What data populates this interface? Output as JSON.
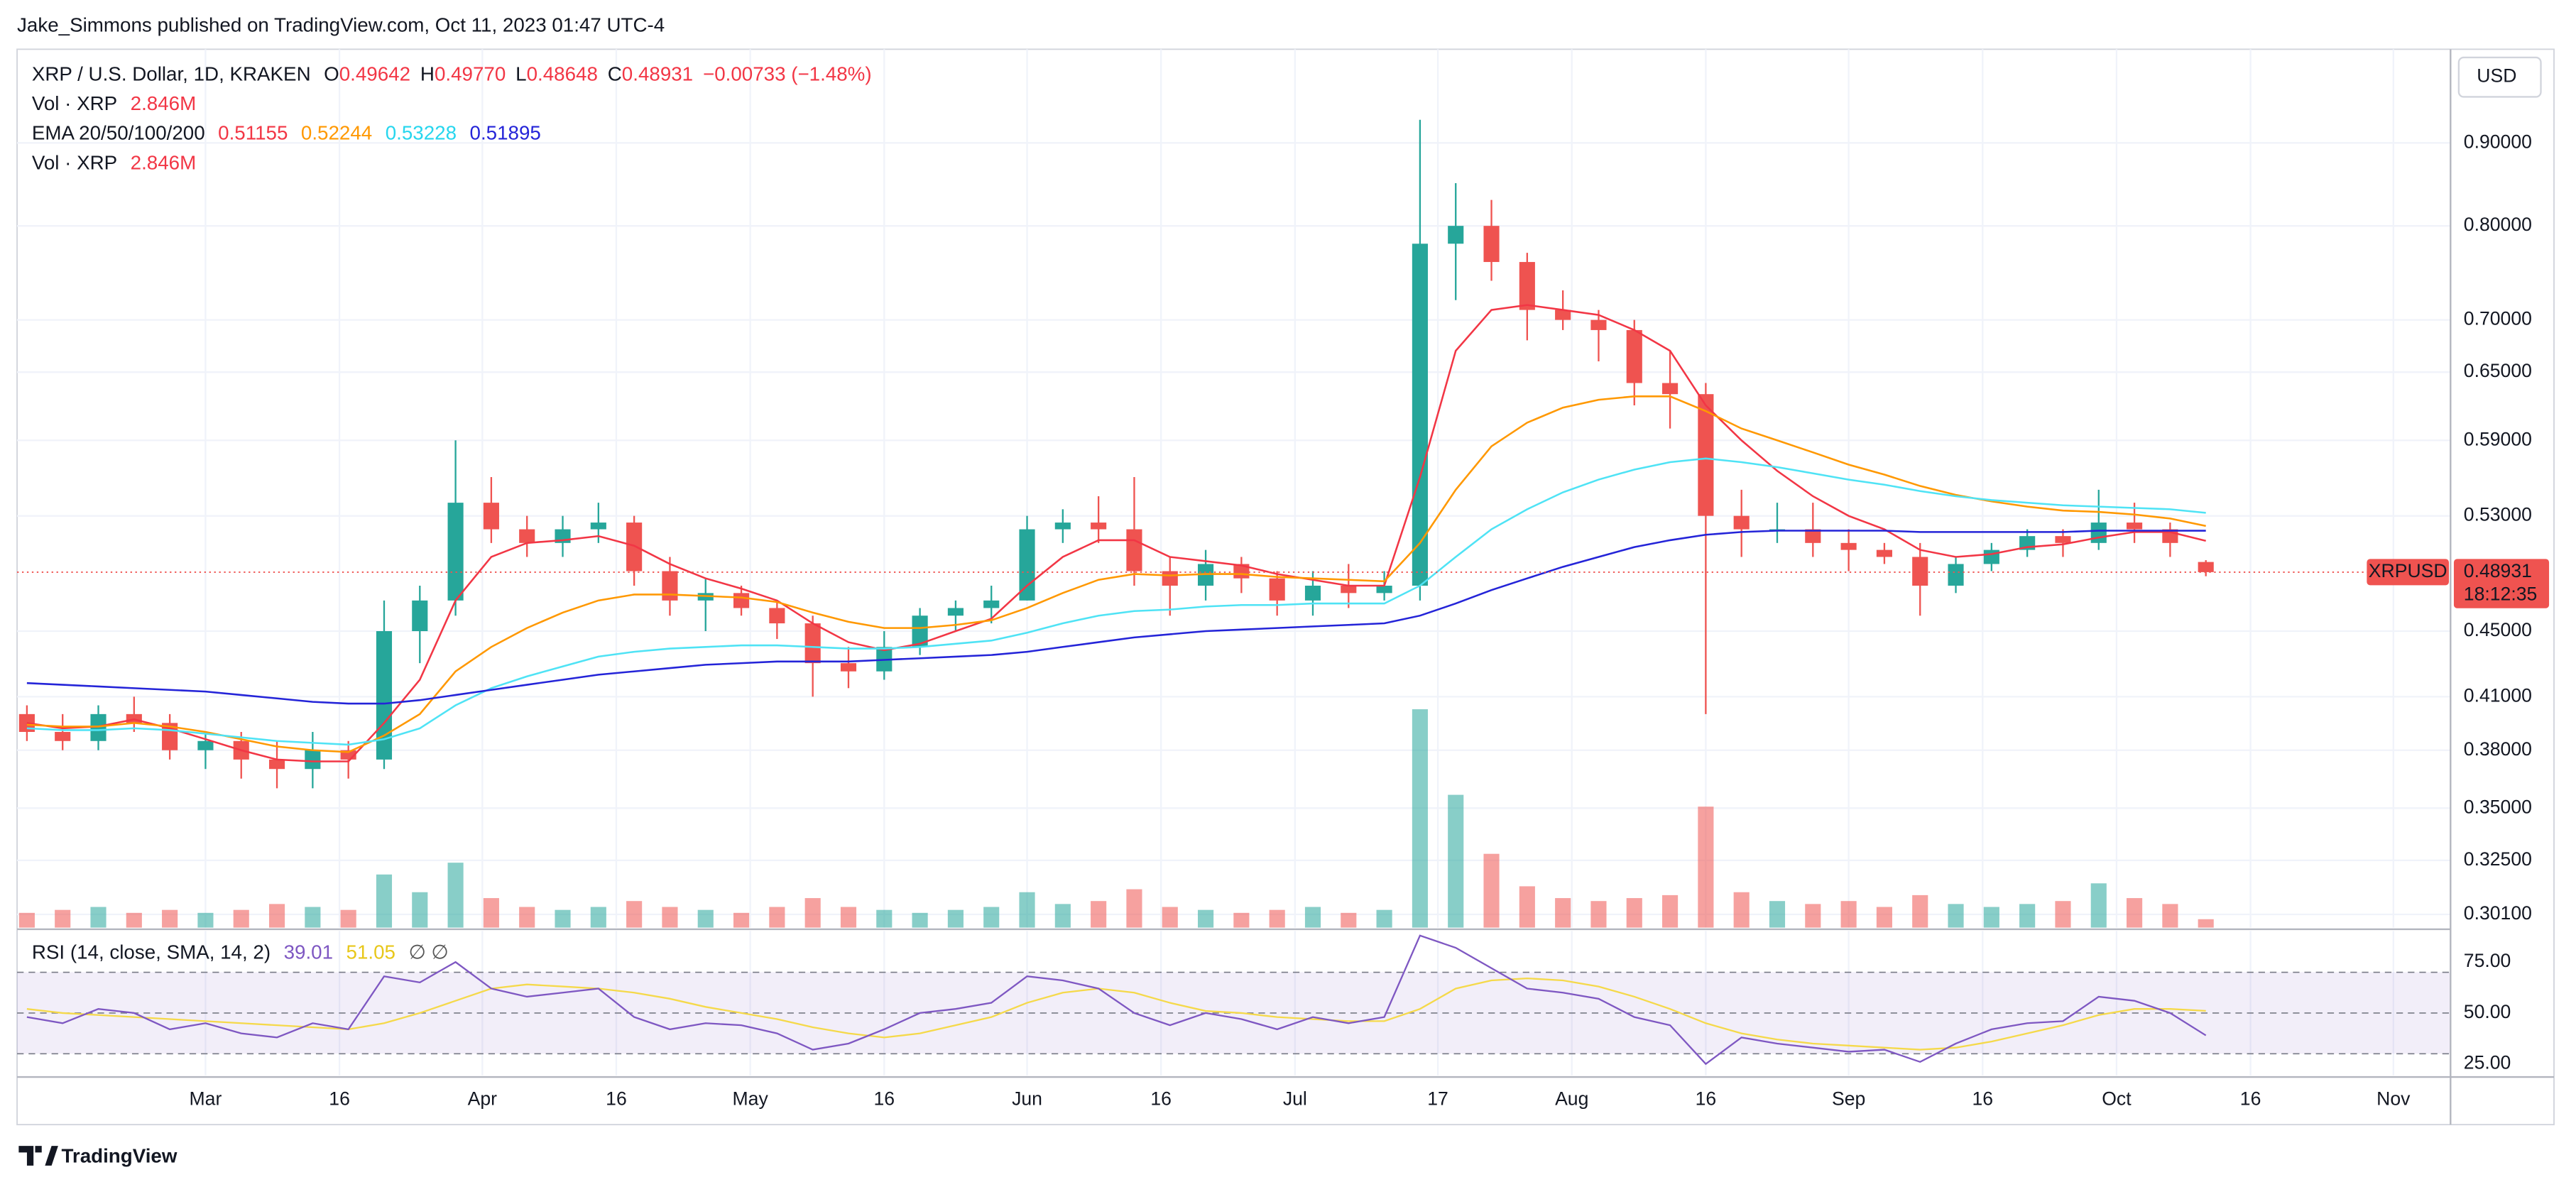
{
  "header": {
    "title": "Jake_Simmons published on TradingView.com, Oct 11, 2023 01:47 UTC-4"
  },
  "footer": {
    "brand": "TradingView"
  },
  "chart_data": [
    {
      "type": "candlestick",
      "log_scale": true,
      "grid": true,
      "currency": "USD",
      "legend": {
        "symbol": "XRP / U.S. Dollar, 1D, KRAKEN",
        "ohlc": [
          [
            "O",
            "0.49642"
          ],
          [
            "H",
            "0.49770"
          ],
          [
            "L",
            "0.48648"
          ],
          [
            "C",
            "0.48931"
          ]
        ],
        "change": "−0.00733 (−1.48%)",
        "volume": [
          "Vol · XRP",
          "2.846M"
        ],
        "ema": [
          "EMA 20/50/100/200",
          "0.51155",
          "0.52244",
          "0.53228",
          "0.51895"
        ],
        "volume2": [
          "Vol · XRP",
          "2.846M"
        ]
      },
      "last": {
        "symbol": "XRPUSD",
        "price": "0.48931",
        "countdown": "18:12:35"
      },
      "up_color": "#26a69a",
      "down_color": "#ef5350",
      "xlim": [
        38.9,
        311.4
      ],
      "xticks": [
        {
          "value": 60,
          "label": "Mar"
        },
        {
          "value": 75,
          "label": "16"
        },
        {
          "value": 91,
          "label": "Apr"
        },
        {
          "value": 106,
          "label": "16"
        },
        {
          "value": 121,
          "label": "May"
        },
        {
          "value": 136,
          "label": "16"
        },
        {
          "value": 152,
          "label": "Jun"
        },
        {
          "value": 167,
          "label": "16"
        },
        {
          "value": 182,
          "label": "Jul"
        },
        {
          "value": 198,
          "label": "17"
        },
        {
          "value": 213,
          "label": "Aug"
        },
        {
          "value": 228,
          "label": "16"
        },
        {
          "value": 244,
          "label": "Sep"
        },
        {
          "value": 259,
          "label": "16"
        },
        {
          "value": 274,
          "label": "Oct"
        },
        {
          "value": 289,
          "label": "16"
        },
        {
          "value": 305,
          "label": "Nov"
        }
      ],
      "ylim": [
        0.2954,
        1.028
      ],
      "yticks": [
        {
          "value": 0.9,
          "label": "0.90000"
        },
        {
          "value": 0.8,
          "label": "0.80000"
        },
        {
          "value": 0.7,
          "label": "0.70000"
        },
        {
          "value": 0.65,
          "label": "0.65000"
        },
        {
          "value": 0.59,
          "label": "0.59000"
        },
        {
          "value": 0.53,
          "label": "0.53000"
        },
        {
          "value": 0.45,
          "label": "0.45000"
        },
        {
          "value": 0.41,
          "label": "0.41000"
        },
        {
          "value": 0.38,
          "label": "0.38000"
        },
        {
          "value": 0.35,
          "label": "0.35000"
        },
        {
          "value": 0.325,
          "label": "0.32500"
        },
        {
          "value": 0.301,
          "label": "0.30100"
        }
      ],
      "x": [
        40,
        44,
        48,
        52,
        56,
        60,
        64,
        68,
        72,
        76,
        80,
        84,
        88,
        92,
        96,
        100,
        104,
        108,
        112,
        116,
        120,
        124,
        128,
        132,
        136,
        140,
        144,
        148,
        152,
        156,
        160,
        164,
        168,
        172,
        176,
        180,
        184,
        188,
        192,
        196,
        200,
        204,
        208,
        212,
        216,
        220,
        224,
        228,
        232,
        236,
        240,
        244,
        248,
        252,
        256,
        260,
        264,
        268,
        272,
        276,
        280,
        284
      ],
      "open": [
        0.4,
        0.39,
        0.385,
        0.4,
        0.395,
        0.38,
        0.385,
        0.375,
        0.37,
        0.38,
        0.375,
        0.45,
        0.47,
        0.54,
        0.52,
        0.51,
        0.52,
        0.525,
        0.49,
        0.47,
        0.475,
        0.465,
        0.455,
        0.43,
        0.425,
        0.44,
        0.46,
        0.465,
        0.47,
        0.52,
        0.525,
        0.52,
        0.49,
        0.48,
        0.495,
        0.485,
        0.47,
        0.48,
        0.475,
        0.48,
        0.78,
        0.8,
        0.76,
        0.71,
        0.7,
        0.69,
        0.64,
        0.63,
        0.53,
        0.52,
        0.52,
        0.51,
        0.505,
        0.5,
        0.48,
        0.495,
        0.505,
        0.515,
        0.51,
        0.525,
        0.52,
        0.49642
      ],
      "high": [
        0.405,
        0.4,
        0.405,
        0.41,
        0.4,
        0.39,
        0.39,
        0.385,
        0.39,
        0.385,
        0.47,
        0.48,
        0.59,
        0.56,
        0.53,
        0.53,
        0.54,
        0.53,
        0.5,
        0.485,
        0.48,
        0.47,
        0.46,
        0.44,
        0.45,
        0.465,
        0.47,
        0.48,
        0.53,
        0.535,
        0.545,
        0.56,
        0.5,
        0.505,
        0.5,
        0.49,
        0.49,
        0.495,
        0.49,
        0.93,
        0.85,
        0.83,
        0.77,
        0.73,
        0.71,
        0.7,
        0.67,
        0.64,
        0.55,
        0.54,
        0.54,
        0.52,
        0.51,
        0.51,
        0.5,
        0.51,
        0.52,
        0.52,
        0.55,
        0.54,
        0.525,
        0.4977
      ],
      "low": [
        0.385,
        0.38,
        0.38,
        0.39,
        0.375,
        0.37,
        0.365,
        0.36,
        0.36,
        0.365,
        0.37,
        0.43,
        0.46,
        0.51,
        0.5,
        0.5,
        0.51,
        0.48,
        0.46,
        0.45,
        0.46,
        0.445,
        0.41,
        0.415,
        0.42,
        0.435,
        0.45,
        0.455,
        0.47,
        0.51,
        0.51,
        0.48,
        0.46,
        0.47,
        0.475,
        0.46,
        0.46,
        0.465,
        0.47,
        0.47,
        0.72,
        0.74,
        0.68,
        0.69,
        0.66,
        0.62,
        0.6,
        0.4,
        0.5,
        0.51,
        0.5,
        0.49,
        0.495,
        0.46,
        0.475,
        0.49,
        0.5,
        0.5,
        0.505,
        0.51,
        0.5,
        0.48648
      ],
      "close": [
        0.39,
        0.385,
        0.4,
        0.395,
        0.38,
        0.385,
        0.375,
        0.37,
        0.38,
        0.375,
        0.45,
        0.47,
        0.54,
        0.52,
        0.51,
        0.52,
        0.525,
        0.49,
        0.47,
        0.475,
        0.465,
        0.455,
        0.43,
        0.425,
        0.44,
        0.46,
        0.465,
        0.47,
        0.52,
        0.525,
        0.52,
        0.49,
        0.48,
        0.495,
        0.485,
        0.47,
        0.48,
        0.475,
        0.48,
        0.78,
        0.8,
        0.76,
        0.71,
        0.7,
        0.69,
        0.64,
        0.63,
        0.53,
        0.52,
        0.52,
        0.51,
        0.505,
        0.5,
        0.48,
        0.495,
        0.505,
        0.515,
        0.51,
        0.525,
        0.52,
        0.51,
        0.48931
      ],
      "series": [
        {
          "color": "#f23645",
          "values": [
            0.395,
            0.392,
            0.393,
            0.397,
            0.392,
            0.386,
            0.38,
            0.375,
            0.374,
            0.374,
            0.395,
            0.42,
            0.47,
            0.5,
            0.51,
            0.512,
            0.515,
            0.508,
            0.495,
            0.485,
            0.478,
            0.47,
            0.455,
            0.443,
            0.438,
            0.442,
            0.45,
            0.458,
            0.48,
            0.5,
            0.512,
            0.512,
            0.5,
            0.497,
            0.494,
            0.488,
            0.484,
            0.48,
            0.48,
            0.56,
            0.67,
            0.71,
            0.715,
            0.71,
            0.705,
            0.69,
            0.67,
            0.62,
            0.59,
            0.565,
            0.545,
            0.53,
            0.52,
            0.505,
            0.5,
            0.502,
            0.507,
            0.509,
            0.514,
            0.518,
            0.518,
            0.51155
          ]
        },
        {
          "color": "#ff9800",
          "values": [
            0.394,
            0.393,
            0.393,
            0.395,
            0.393,
            0.39,
            0.386,
            0.382,
            0.38,
            0.379,
            0.388,
            0.4,
            0.425,
            0.44,
            0.452,
            0.462,
            0.47,
            0.474,
            0.474,
            0.473,
            0.472,
            0.469,
            0.462,
            0.456,
            0.452,
            0.452,
            0.454,
            0.457,
            0.465,
            0.475,
            0.484,
            0.488,
            0.487,
            0.488,
            0.488,
            0.486,
            0.485,
            0.484,
            0.483,
            0.51,
            0.55,
            0.585,
            0.605,
            0.618,
            0.625,
            0.628,
            0.628,
            0.615,
            0.6,
            0.59,
            0.58,
            0.57,
            0.562,
            0.553,
            0.546,
            0.541,
            0.537,
            0.534,
            0.533,
            0.531,
            0.528,
            0.52244
          ]
        },
        {
          "color": "#4fe3f5",
          "values": [
            0.392,
            0.391,
            0.391,
            0.392,
            0.391,
            0.389,
            0.387,
            0.385,
            0.384,
            0.383,
            0.386,
            0.392,
            0.405,
            0.415,
            0.422,
            0.428,
            0.434,
            0.437,
            0.439,
            0.44,
            0.441,
            0.441,
            0.44,
            0.439,
            0.439,
            0.44,
            0.442,
            0.444,
            0.449,
            0.455,
            0.46,
            0.463,
            0.464,
            0.466,
            0.467,
            0.467,
            0.468,
            0.468,
            0.468,
            0.48,
            0.5,
            0.52,
            0.535,
            0.548,
            0.558,
            0.566,
            0.572,
            0.575,
            0.572,
            0.568,
            0.563,
            0.558,
            0.554,
            0.549,
            0.545,
            0.542,
            0.54,
            0.538,
            0.537,
            0.536,
            0.535,
            0.53228
          ]
        },
        {
          "color": "#2424d8",
          "values": [
            0.418,
            0.417,
            0.416,
            0.415,
            0.414,
            0.413,
            0.411,
            0.409,
            0.407,
            0.406,
            0.406,
            0.408,
            0.411,
            0.414,
            0.417,
            0.42,
            0.423,
            0.425,
            0.427,
            0.429,
            0.43,
            0.431,
            0.431,
            0.431,
            0.432,
            0.433,
            0.434,
            0.435,
            0.437,
            0.44,
            0.443,
            0.446,
            0.448,
            0.45,
            0.451,
            0.452,
            0.453,
            0.454,
            0.455,
            0.46,
            0.468,
            0.477,
            0.485,
            0.493,
            0.5,
            0.507,
            0.512,
            0.516,
            0.518,
            0.519,
            0.519,
            0.519,
            0.519,
            0.518,
            0.518,
            0.518,
            0.518,
            0.518,
            0.519,
            0.519,
            0.519,
            0.51895
          ]
        }
      ]
    },
    {
      "type": "bar",
      "xlim": [
        38.9,
        311.4
      ],
      "x": [
        40,
        44,
        48,
        52,
        56,
        60,
        64,
        68,
        72,
        76,
        80,
        84,
        88,
        92,
        96,
        100,
        104,
        108,
        112,
        116,
        120,
        124,
        128,
        132,
        136,
        140,
        144,
        148,
        152,
        156,
        160,
        164,
        168,
        172,
        176,
        180,
        184,
        188,
        192,
        196,
        200,
        204,
        208,
        212,
        216,
        220,
        224,
        228,
        232,
        236,
        240,
        244,
        248,
        252,
        256,
        260,
        264,
        268,
        272,
        276,
        280,
        284
      ],
      "values": [
        5,
        6,
        7,
        5,
        6,
        5,
        6,
        8,
        7,
        6,
        18,
        12,
        22,
        10,
        7,
        6,
        7,
        9,
        7,
        6,
        5,
        7,
        10,
        7,
        6,
        5,
        6,
        7,
        12,
        8,
        9,
        13,
        7,
        6,
        5,
        6,
        7,
        5,
        6,
        74,
        45,
        25,
        14,
        10,
        9,
        10,
        11,
        41,
        12,
        9,
        8,
        9,
        7,
        11,
        8,
        7,
        8,
        9,
        15,
        10,
        8,
        2.846
      ]
    },
    {
      "type": "line",
      "title": "RSI (14, close, SMA, 14, 2)",
      "extra": "∅ ∅",
      "xlim": [
        38.9,
        311.4
      ],
      "ylim": [
        19.4,
        90.3
      ],
      "yticks": [
        {
          "value": 75,
          "label": "75.00"
        },
        {
          "value": 50,
          "label": "50.00"
        },
        {
          "value": 25,
          "label": "25.00"
        }
      ],
      "band": [
        30,
        70
      ],
      "midline": 50,
      "band_color": "#7e57c2",
      "x": [
        40,
        44,
        48,
        52,
        56,
        60,
        64,
        68,
        72,
        76,
        80,
        84,
        88,
        92,
        96,
        100,
        104,
        108,
        112,
        116,
        120,
        124,
        128,
        132,
        136,
        140,
        144,
        148,
        152,
        156,
        160,
        164,
        168,
        172,
        176,
        180,
        184,
        188,
        192,
        196,
        200,
        204,
        208,
        212,
        216,
        220,
        224,
        228,
        232,
        236,
        240,
        244,
        248,
        252,
        256,
        260,
        264,
        268,
        272,
        276,
        280,
        284
      ],
      "series": [
        {
          "color": "#7e57c2",
          "value_label": "39.01",
          "values": [
            48,
            45,
            52,
            50,
            42,
            45,
            40,
            38,
            45,
            42,
            68,
            65,
            75,
            62,
            58,
            60,
            62,
            48,
            42,
            45,
            44,
            40,
            32,
            35,
            42,
            50,
            52,
            55,
            68,
            66,
            62,
            50,
            44,
            50,
            47,
            42,
            48,
            45,
            48,
            88,
            82,
            72,
            62,
            60,
            57,
            48,
            44,
            25,
            38,
            35,
            33,
            31,
            32,
            26,
            35,
            42,
            45,
            46,
            58,
            56,
            50,
            39.01
          ]
        },
        {
          "color": "#f5d94a",
          "value_label": "51.05",
          "values": [
            52,
            50,
            49,
            48,
            47,
            46,
            45,
            44,
            43,
            42,
            45,
            50,
            56,
            62,
            64,
            63,
            62,
            60,
            57,
            53,
            50,
            47,
            43,
            40,
            38,
            40,
            44,
            48,
            55,
            60,
            62,
            60,
            55,
            51,
            50,
            48,
            47,
            46,
            46,
            52,
            62,
            66,
            67,
            66,
            63,
            58,
            52,
            45,
            40,
            37,
            35,
            34,
            33,
            32,
            33,
            36,
            40,
            44,
            49,
            52,
            52,
            51.05
          ]
        }
      ]
    }
  ]
}
